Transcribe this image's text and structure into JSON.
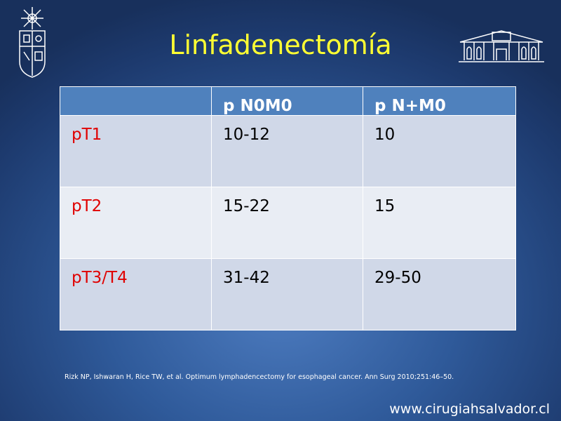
{
  "title": "Linfadenectomía",
  "table": {
    "header": [
      "p N0M0",
      "p N+M0"
    ],
    "rows": [
      [
        "pT1",
        "10-12",
        "10"
      ],
      [
        "pT2",
        "15-22",
        "15"
      ],
      [
        "pT3/T4",
        "31-42",
        "29-50"
      ]
    ]
  },
  "citation": "Rizk NP, Ishwaran H, Rice TW, et al. Optimum lymphadencectomy for esophageal cancer. Ann Surg 2010;251:46–50.",
  "footer": "www.cirugiahsalvador.cl"
}
